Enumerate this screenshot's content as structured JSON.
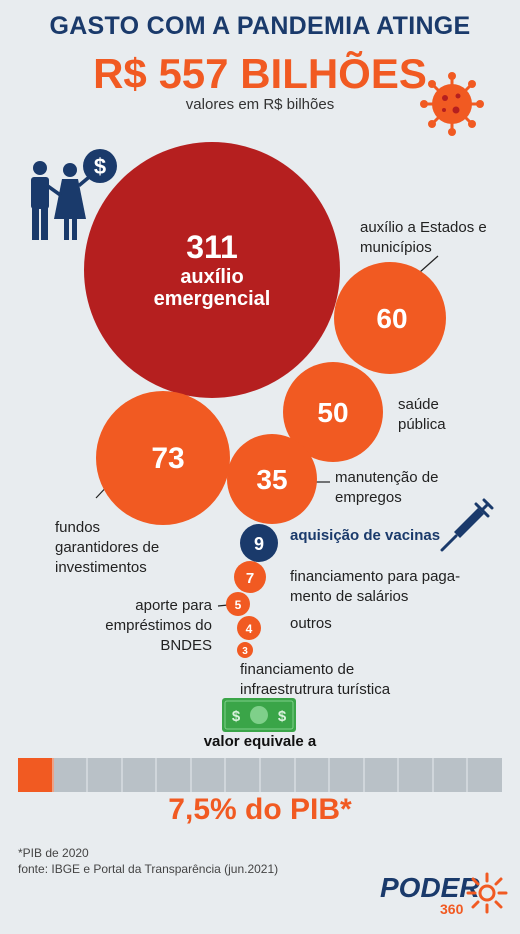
{
  "header": {
    "title_line1": "GASTO COM A PANDEMIA ATINGE",
    "title_line2": "R$ 557 BILHÕES",
    "subtitle": "valores em R$ bilhões"
  },
  "chart_data": {
    "type": "bubble",
    "total": 557,
    "unit": "R$ bilhões",
    "items": [
      {
        "value": 311,
        "label": "auxílio emergencial",
        "color": "#b51f1f"
      },
      {
        "value": 60,
        "label": "auxílio a Estados e municípios",
        "color": "#f15a22"
      },
      {
        "value": 50,
        "label": "saúde pública",
        "color": "#f15a22"
      },
      {
        "value": 73,
        "label": "fundos garantidores de investimentos",
        "color": "#f15a22"
      },
      {
        "value": 35,
        "label": "manutenção de empregos",
        "color": "#f15a22"
      },
      {
        "value": 9,
        "label": "aquisição de vacinas",
        "color": "#1a3a6b"
      },
      {
        "value": 7,
        "label": "financiamento para pagamento de salários",
        "color": "#f15a22"
      },
      {
        "value": 5,
        "label": "aporte para empréstimos do BNDES",
        "color": "#f15a22"
      },
      {
        "value": 4,
        "label": "outros",
        "color": "#f15a22"
      },
      {
        "value": 3,
        "label": "financiamento de infraestrutrura turística",
        "color": "#f15a22"
      }
    ],
    "pib_share": {
      "label": "valor equivale a",
      "percent": 7.5,
      "text": "7,5% do PIB*"
    }
  },
  "labels": {
    "auxilio_num": "311",
    "auxilio_l1": "auxílio",
    "auxilio_l2": "emergencial",
    "estados_l1": "auxílio a Estados e",
    "estados_l2": "municípios",
    "saude_l1": "saúde",
    "saude_l2": "pública",
    "manut_l1": "manutenção de",
    "manut_l2": "empregos",
    "fundos_l1": "fundos",
    "fundos_l2": "garantidores de",
    "fundos_l3": "investimentos",
    "vacinas": "aquisição de vacinas",
    "salarios_l1": "financiamento para paga-",
    "salarios_l2": "mento de salários",
    "bndes_l1": "aporte para",
    "bndes_l2": "empréstimos do",
    "bndes_l3": "BNDES",
    "outros": "outros",
    "turismo_l1": "financiamento de",
    "turismo_l2": "infraestrutrura turística"
  },
  "footer": {
    "note": "*PIB de 2020",
    "source": "fonte: IBGE e Portal da Transparência (jun.2021)",
    "logo": "PODER",
    "logo_sub": "360"
  },
  "colors": {
    "dark_red": "#b51f1f",
    "orange": "#f15a22",
    "navy": "#1a3a6b",
    "grey_bar": "#b9c1c7"
  },
  "icons": [
    "couple-money-icon",
    "virus-icon",
    "syringe-icon",
    "banknote-icon",
    "poder360-sun-icon"
  ]
}
